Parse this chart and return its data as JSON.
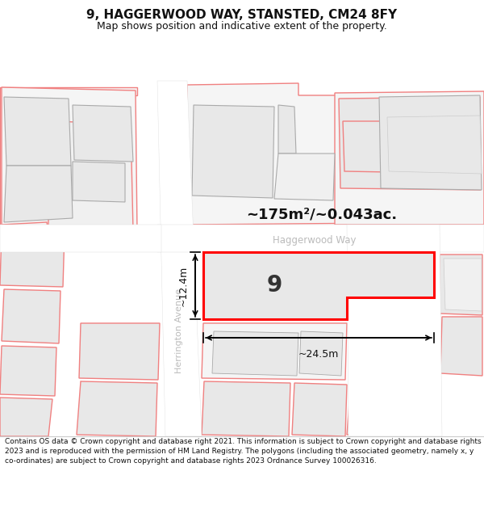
{
  "title_line1": "9, HAGGERWOOD WAY, STANSTED, CM24 8FY",
  "title_line2": "Map shows position and indicative extent of the property.",
  "area_text": "~175m²/~0.043ac.",
  "number_label": "9",
  "street_label_vertical": "Herrington Avenue",
  "street_label_horizontal": "Haggerwood Way",
  "dim_width": "~24.5m",
  "dim_height": "~12.4m",
  "footer_text": "Contains OS data © Crown copyright and database right 2021. This information is subject to Crown copyright and database rights 2023 and is reproduced with the permission of HM Land Registry. The polygons (including the associated geometry, namely x, y co-ordinates) are subject to Crown copyright and database rights 2023 Ordnance Survey 100026316.",
  "bg_color": "#ffffff",
  "polygon_fill": "#e8e8e8",
  "polygon_fill2": "#f0f0f0",
  "polygon_edge_pink": "#f08080",
  "highlight_fill": "#e8e8e8",
  "highlight_edge": "#ff0000",
  "title_fontsize": 11,
  "subtitle_fontsize": 9,
  "footer_fontsize": 6.5
}
